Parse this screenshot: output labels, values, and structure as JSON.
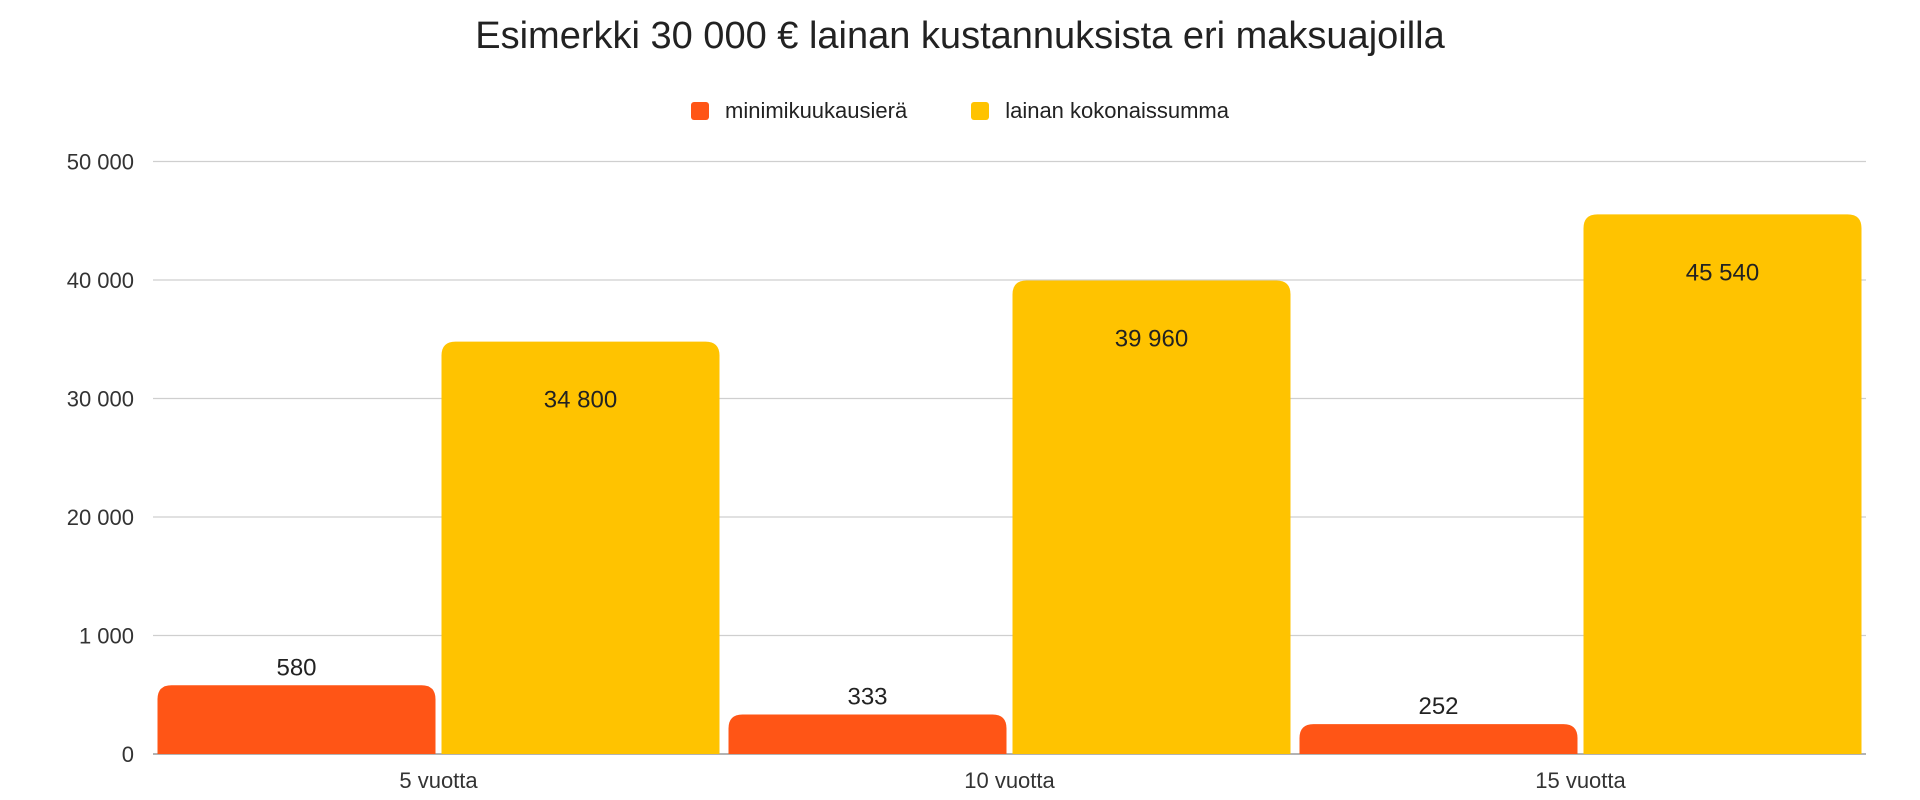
{
  "chart_data": {
    "type": "bar",
    "title": "Esimerkki 30 000 € lainan kustannuksista eri maksuajoilla",
    "categories": [
      "5 vuotta",
      "10 vuotta",
      "15 vuotta"
    ],
    "series": [
      {
        "name": "minimikuukausierä",
        "color": "#FF5516",
        "values": [
          580,
          333,
          252
        ],
        "value_labels": [
          "580",
          "333",
          "252"
        ]
      },
      {
        "name": "lainan kokonaissumma",
        "color": "#FFC300",
        "values": [
          34800,
          39960,
          45540
        ],
        "value_labels": [
          "34 800",
          "39 960",
          "45 540"
        ]
      }
    ],
    "y_scale": "piecewise: 0–1 000 occupies the first band, then 10 000 per band up to 50 000",
    "y_ticks": [
      {
        "value": 0,
        "label": "0"
      },
      {
        "value": 1000,
        "label": "1 000"
      },
      {
        "value": 20000,
        "label": "20 000"
      },
      {
        "value": 30000,
        "label": "30 000"
      },
      {
        "value": 40000,
        "label": "40 000"
      },
      {
        "value": 50000,
        "label": "50 000"
      }
    ],
    "ylim": [
      0,
      50000
    ],
    "grid": true,
    "legend_position": "top-center",
    "xlabel": "",
    "ylabel": ""
  }
}
